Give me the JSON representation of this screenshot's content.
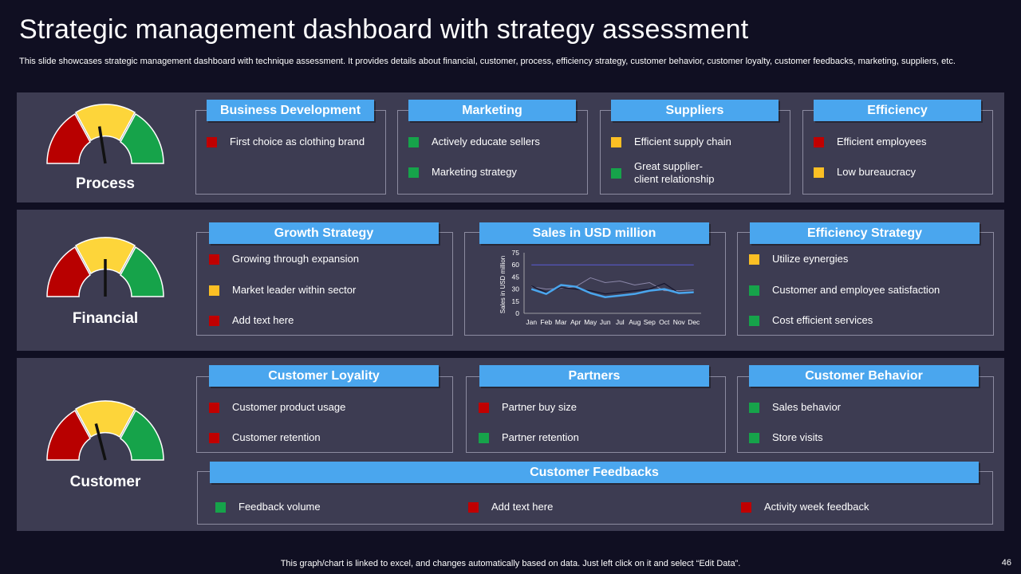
{
  "title": "Strategic management dashboard with strategy assessment",
  "subtitle": "This slide showcases strategic management dashboard with technique assessment. It provides details about financial, customer, process, efficiency strategy, customer behavior, customer loyalty, customer feedbacks, marketing, suppliers, etc.",
  "colors": {
    "red": "#c00000",
    "green": "#16a34a",
    "yellow": "#fbbf24",
    "header": "#4aa6ee",
    "panel": "#3d3c52",
    "background": "#100f22"
  },
  "gauges": [
    {
      "label": "Process",
      "needle_value": 0.45
    },
    {
      "label": "Financial",
      "needle_value": 0.5
    },
    {
      "label": "Customer",
      "needle_value": 0.42
    }
  ],
  "process": {
    "business_development": {
      "title": "Business Development",
      "items": [
        {
          "text": "First choice as clothing brand",
          "status": "red"
        }
      ]
    },
    "marketing": {
      "title": "Marketing",
      "items": [
        {
          "text": "Actively educate sellers",
          "status": "green"
        },
        {
          "text": "Marketing strategy",
          "status": "green"
        }
      ]
    },
    "suppliers": {
      "title": "Suppliers",
      "items": [
        {
          "text": "Efficient supply chain",
          "status": "yellow"
        },
        {
          "text": "Great supplier-",
          "text2": "client relationship",
          "status": "green"
        }
      ]
    },
    "efficiency": {
      "title": "Efficiency",
      "items": [
        {
          "text": "Efficient employees",
          "status": "red"
        },
        {
          "text": "Low bureaucracy",
          "status": "yellow"
        }
      ]
    }
  },
  "financial": {
    "growth_strategy": {
      "title": "Growth Strategy",
      "items": [
        {
          "text": "Growing through expansion",
          "status": "red"
        },
        {
          "text": "Market leader within sector",
          "status": "yellow"
        },
        {
          "text": "Add text here",
          "status": "red"
        }
      ]
    },
    "sales": {
      "title": "Sales in USD million"
    },
    "efficiency_strategy": {
      "title": "Efficiency Strategy",
      "items": [
        {
          "text": "Utilize eynergies",
          "status": "yellow"
        },
        {
          "text": "Customer and employee satisfaction",
          "status": "green"
        },
        {
          "text": "Cost efficient services",
          "status": "green"
        }
      ]
    }
  },
  "customer": {
    "loyality": {
      "title": "Customer Loyality",
      "items": [
        {
          "text": "Customer product usage",
          "status": "red"
        },
        {
          "text": "Customer retention",
          "status": "red"
        }
      ]
    },
    "partners": {
      "title": "Partners",
      "items": [
        {
          "text": "Partner buy size",
          "status": "red"
        },
        {
          "text": "Partner retention",
          "status": "green"
        }
      ]
    },
    "behavior": {
      "title": "Customer Behavior",
      "items": [
        {
          "text": "Sales behavior",
          "status": "green"
        },
        {
          "text": "Store visits",
          "status": "green"
        }
      ]
    },
    "feedbacks": {
      "title": "Customer Feedbacks",
      "items": [
        {
          "text": "Feedback volume",
          "status": "green"
        },
        {
          "text": "Add text here",
          "status": "red"
        },
        {
          "text": "Activity week feedback",
          "status": "red"
        }
      ]
    }
  },
  "chart_data": {
    "type": "line",
    "title": "",
    "xlabel": "",
    "ylabel": "Sales in USD million",
    "ylim": [
      0,
      75
    ],
    "yticks": [
      "0",
      "15",
      "30",
      "45",
      "60",
      "75"
    ],
    "categories": [
      "Jan",
      "Feb",
      "Mar",
      "Apr",
      "May",
      "Jun",
      "Jul",
      "Aug",
      "Sep",
      "Oct",
      "Nov",
      "Dec"
    ],
    "series": [
      {
        "color": "#5b5bd6",
        "width": 1,
        "values": [
          60,
          60,
          60,
          60,
          60,
          60,
          60,
          60,
          60,
          60,
          60,
          60
        ]
      },
      {
        "color": "#8a86a8",
        "width": 1,
        "values": [
          33,
          30,
          31,
          33,
          44,
          38,
          40,
          35,
          38,
          28,
          28,
          29
        ]
      },
      {
        "color": "#15152e",
        "width": 1.2,
        "values": [
          34,
          26,
          32,
          30,
          28,
          24,
          26,
          28,
          30,
          37,
          25,
          25
        ]
      },
      {
        "color": "#4aa6ee",
        "width": 2.5,
        "values": [
          30,
          24,
          35,
          33,
          25,
          20,
          22,
          24,
          28,
          30,
          25,
          26
        ]
      }
    ],
    "grid": false,
    "legend": "none"
  },
  "footer": "This graph/chart is linked to excel, and changes automatically based on data. Just left click on it and select “Edit Data”.",
  "page_number": "46"
}
